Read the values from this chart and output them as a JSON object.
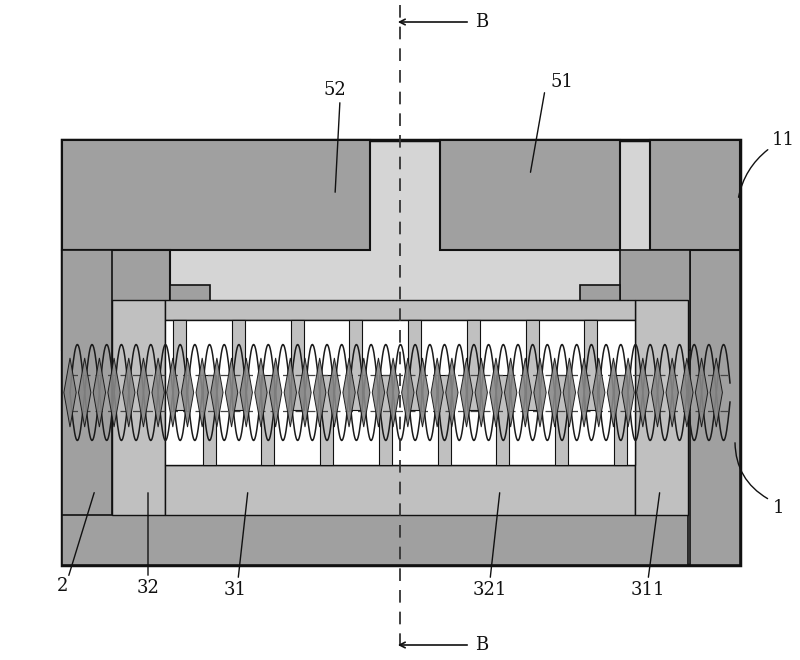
{
  "fig_width": 8.0,
  "fig_height": 6.6,
  "dpi": 100,
  "bg_color": "#ffffff",
  "dark_gray": "#a0a0a0",
  "med_gray": "#c0c0c0",
  "white": "#ffffff",
  "black": "#111111",
  "coil_gray": "#b8b8b8",
  "outer_fill": "#e0e0e0",
  "label_fontsize": 13,
  "small_fontsize": 11
}
